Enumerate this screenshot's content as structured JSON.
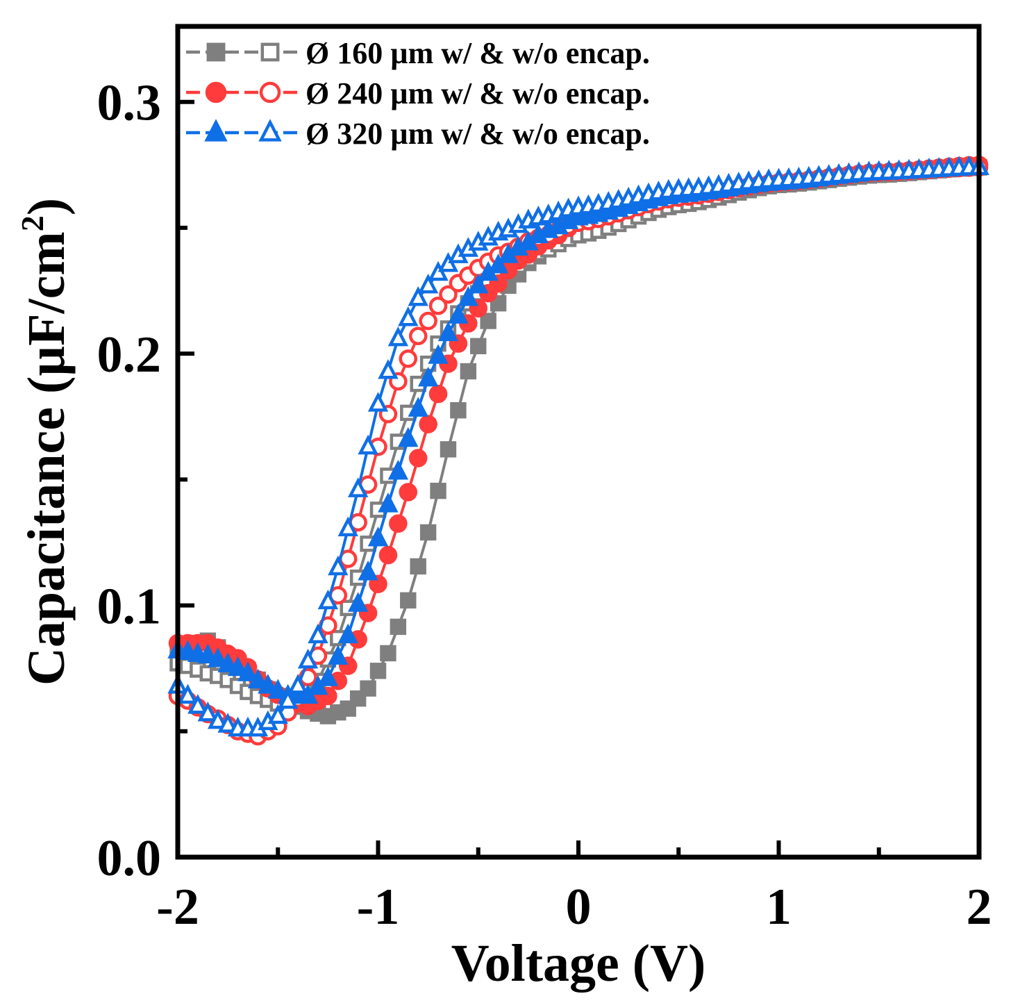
{
  "chart_data": {
    "type": "line",
    "title": "",
    "xlabel": "Voltage (V)",
    "ylabel_main": "Capacitance (µF/cm",
    "ylabel_sup": "2",
    "ylabel_close": ")",
    "xlim": [
      -2,
      2
    ],
    "ylim": [
      0.0,
      0.33
    ],
    "x_ticks": [
      -2,
      -1,
      0,
      1,
      2
    ],
    "x_tick_labels": [
      "-2",
      "-1",
      "0",
      "1",
      "2"
    ],
    "x_minor_ticks": [
      -1.5,
      -0.5,
      0.5,
      1.5
    ],
    "y_ticks": [
      0.0,
      0.1,
      0.2,
      0.3
    ],
    "y_tick_labels": [
      "0.0",
      "0.1",
      "0.2",
      "0.3"
    ],
    "y_minor_ticks": [
      0.05,
      0.15,
      0.25
    ],
    "legend_position": "top-left",
    "legend": [
      {
        "label": "Ø 160 µm w/ & w/o encap.",
        "color": "#7f7f7f",
        "marker": "square"
      },
      {
        "label": "Ø 240 µm w/ & w/o encap.",
        "color": "#ff3b3b",
        "marker": "circle"
      },
      {
        "label": "Ø 320 µm w/ & w/o encap.",
        "color": "#0f6fe6",
        "marker": "triangle"
      }
    ],
    "x_step": 0.05,
    "series": [
      {
        "name": "Ø 160 µm w/ encap.",
        "color": "#7f7f7f",
        "marker": "square",
        "filled": true,
        "key_points": [
          [
            -2.0,
            0.083
          ],
          [
            -1.85,
            0.086
          ],
          [
            -1.7,
            0.077
          ],
          [
            -1.5,
            0.064
          ],
          [
            -1.35,
            0.058
          ],
          [
            -1.25,
            0.056
          ],
          [
            -1.15,
            0.059
          ],
          [
            -1.05,
            0.067
          ],
          [
            -0.95,
            0.081
          ],
          [
            -0.85,
            0.102
          ],
          [
            -0.75,
            0.129
          ],
          [
            -0.65,
            0.162
          ],
          [
            -0.55,
            0.193
          ],
          [
            -0.45,
            0.213
          ],
          [
            -0.35,
            0.227
          ],
          [
            -0.25,
            0.236
          ],
          [
            -0.1,
            0.245
          ],
          [
            0.0,
            0.249
          ],
          [
            0.25,
            0.256
          ],
          [
            0.5,
            0.261
          ],
          [
            1.0,
            0.267
          ],
          [
            1.5,
            0.271
          ],
          [
            2.0,
            0.274
          ]
        ]
      },
      {
        "name": "Ø 160 µm w/o encap.",
        "color": "#7f7f7f",
        "marker": "square",
        "filled": false,
        "key_points": [
          [
            -2.0,
            0.077
          ],
          [
            -1.8,
            0.072
          ],
          [
            -1.6,
            0.064
          ],
          [
            -1.5,
            0.061
          ],
          [
            -1.4,
            0.062
          ],
          [
            -1.3,
            0.07
          ],
          [
            -1.2,
            0.087
          ],
          [
            -1.1,
            0.111
          ],
          [
            -1.0,
            0.138
          ],
          [
            -0.9,
            0.165
          ],
          [
            -0.8,
            0.188
          ],
          [
            -0.7,
            0.204
          ],
          [
            -0.6,
            0.216
          ],
          [
            -0.5,
            0.224
          ],
          [
            -0.4,
            0.23
          ],
          [
            -0.3,
            0.235
          ],
          [
            -0.2,
            0.24
          ],
          [
            0.0,
            0.247
          ],
          [
            0.5,
            0.259
          ],
          [
            1.0,
            0.267
          ],
          [
            1.5,
            0.271
          ],
          [
            2.0,
            0.274
          ]
        ]
      },
      {
        "name": "Ø 240 µm w/ encap.",
        "color": "#ff3b3b",
        "marker": "circle",
        "filled": true,
        "key_points": [
          [
            -2.0,
            0.085
          ],
          [
            -1.85,
            0.085
          ],
          [
            -1.7,
            0.079
          ],
          [
            -1.55,
            0.067
          ],
          [
            -1.45,
            0.062
          ],
          [
            -1.35,
            0.06
          ],
          [
            -1.25,
            0.064
          ],
          [
            -1.15,
            0.076
          ],
          [
            -1.05,
            0.097
          ],
          [
            -0.95,
            0.12
          ],
          [
            -0.85,
            0.145
          ],
          [
            -0.75,
            0.172
          ],
          [
            -0.65,
            0.196
          ],
          [
            -0.55,
            0.212
          ],
          [
            -0.45,
            0.224
          ],
          [
            -0.3,
            0.237
          ],
          [
            -0.15,
            0.245
          ],
          [
            0.0,
            0.252
          ],
          [
            0.5,
            0.262
          ],
          [
            1.0,
            0.268
          ],
          [
            1.5,
            0.272
          ],
          [
            2.0,
            0.275
          ]
        ]
      },
      {
        "name": "Ø 240 µm w/o encap.",
        "color": "#ff3b3b",
        "marker": "circle",
        "filled": false,
        "key_points": [
          [
            -2.0,
            0.064
          ],
          [
            -1.8,
            0.055
          ],
          [
            -1.7,
            0.05
          ],
          [
            -1.6,
            0.048
          ],
          [
            -1.5,
            0.052
          ],
          [
            -1.4,
            0.063
          ],
          [
            -1.3,
            0.08
          ],
          [
            -1.2,
            0.104
          ],
          [
            -1.1,
            0.133
          ],
          [
            -1.0,
            0.163
          ],
          [
            -0.9,
            0.189
          ],
          [
            -0.8,
            0.207
          ],
          [
            -0.7,
            0.219
          ],
          [
            -0.6,
            0.228
          ],
          [
            -0.5,
            0.234
          ],
          [
            -0.4,
            0.239
          ],
          [
            -0.2,
            0.246
          ],
          [
            0.0,
            0.252
          ],
          [
            0.5,
            0.262
          ],
          [
            1.0,
            0.268
          ],
          [
            1.5,
            0.272
          ],
          [
            2.0,
            0.274
          ]
        ]
      },
      {
        "name": "Ø 320 µm w/ encap.",
        "color": "#0f6fe6",
        "marker": "triangle",
        "filled": true,
        "key_points": [
          [
            -2.0,
            0.082
          ],
          [
            -1.85,
            0.08
          ],
          [
            -1.7,
            0.075
          ],
          [
            -1.55,
            0.068
          ],
          [
            -1.45,
            0.064
          ],
          [
            -1.35,
            0.064
          ],
          [
            -1.25,
            0.071
          ],
          [
            -1.15,
            0.088
          ],
          [
            -1.05,
            0.113
          ],
          [
            -0.95,
            0.14
          ],
          [
            -0.85,
            0.166
          ],
          [
            -0.75,
            0.19
          ],
          [
            -0.65,
            0.208
          ],
          [
            -0.55,
            0.222
          ],
          [
            -0.45,
            0.232
          ],
          [
            -0.3,
            0.242
          ],
          [
            -0.15,
            0.249
          ],
          [
            0.0,
            0.254
          ],
          [
            0.5,
            0.263
          ],
          [
            1.0,
            0.268
          ],
          [
            1.5,
            0.272
          ],
          [
            2.0,
            0.274
          ]
        ]
      },
      {
        "name": "Ø 320 µm w/o encap.",
        "color": "#0f6fe6",
        "marker": "triangle",
        "filled": false,
        "key_points": [
          [
            -2.0,
            0.068
          ],
          [
            -1.9,
            0.06
          ],
          [
            -1.8,
            0.054
          ],
          [
            -1.7,
            0.051
          ],
          [
            -1.6,
            0.051
          ],
          [
            -1.5,
            0.056
          ],
          [
            -1.4,
            0.068
          ],
          [
            -1.3,
            0.088
          ],
          [
            -1.2,
            0.115
          ],
          [
            -1.1,
            0.146
          ],
          [
            -1.0,
            0.18
          ],
          [
            -0.9,
            0.206
          ],
          [
            -0.8,
            0.222
          ],
          [
            -0.7,
            0.232
          ],
          [
            -0.6,
            0.239
          ],
          [
            -0.5,
            0.244
          ],
          [
            -0.4,
            0.248
          ],
          [
            -0.2,
            0.254
          ],
          [
            0.0,
            0.258
          ],
          [
            0.5,
            0.265
          ],
          [
            1.0,
            0.269
          ],
          [
            1.5,
            0.272
          ],
          [
            2.0,
            0.274
          ]
        ]
      }
    ]
  }
}
